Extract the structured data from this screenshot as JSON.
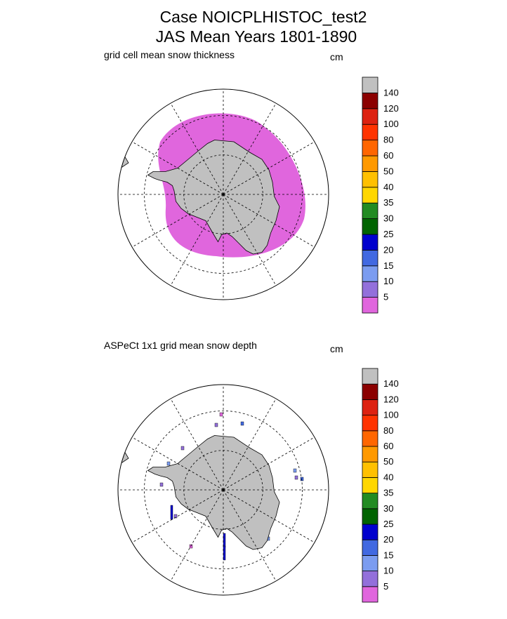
{
  "figure": {
    "title_line1": "Case NOICPLHISTOC_test2",
    "title_line2": "JAS Mean   Years 1801-1890"
  },
  "chart_data": [
    {
      "type": "heatmap",
      "projection": "south-polar-stereographic",
      "title": "grid cell mean snow thickness",
      "units": "cm",
      "grid": true,
      "colorbar": {
        "levels": [
          "5",
          "10",
          "15",
          "20",
          "25",
          "30",
          "35",
          "40",
          "50",
          "60",
          "80",
          "100",
          "120",
          "140"
        ],
        "colors": [
          "#e066dd",
          "#9370db",
          "#7b9cf0",
          "#4169e1",
          "#0000cd",
          "#006400",
          "#228b22",
          "#ffd700",
          "#ffc000",
          "#ff9900",
          "#ff6600",
          "#ff3300",
          "#dd2211",
          "#8b0000",
          "#c0c0c0"
        ]
      },
      "field_summary": "Continuous ring of sea-ice snow in the lowest class (0-5 cm) surrounding Antarctica"
    },
    {
      "type": "heatmap",
      "projection": "south-polar-stereographic",
      "title": "ASPeCt 1x1 grid mean snow depth",
      "units": "cm",
      "grid": true,
      "colorbar": {
        "levels": [
          "5",
          "10",
          "15",
          "20",
          "25",
          "30",
          "35",
          "40",
          "50",
          "60",
          "80",
          "100",
          "120",
          "140"
        ],
        "colors": [
          "#e066dd",
          "#9370db",
          "#7b9cf0",
          "#4169e1",
          "#0000cd",
          "#006400",
          "#228b22",
          "#ffd700",
          "#ffc000",
          "#ff9900",
          "#ff6600",
          "#ff3300",
          "#dd2211",
          "#8b0000",
          "#c0c0c0"
        ]
      },
      "field_summary": "Sparse ship-based observations scattered near the Antarctic coast"
    }
  ]
}
